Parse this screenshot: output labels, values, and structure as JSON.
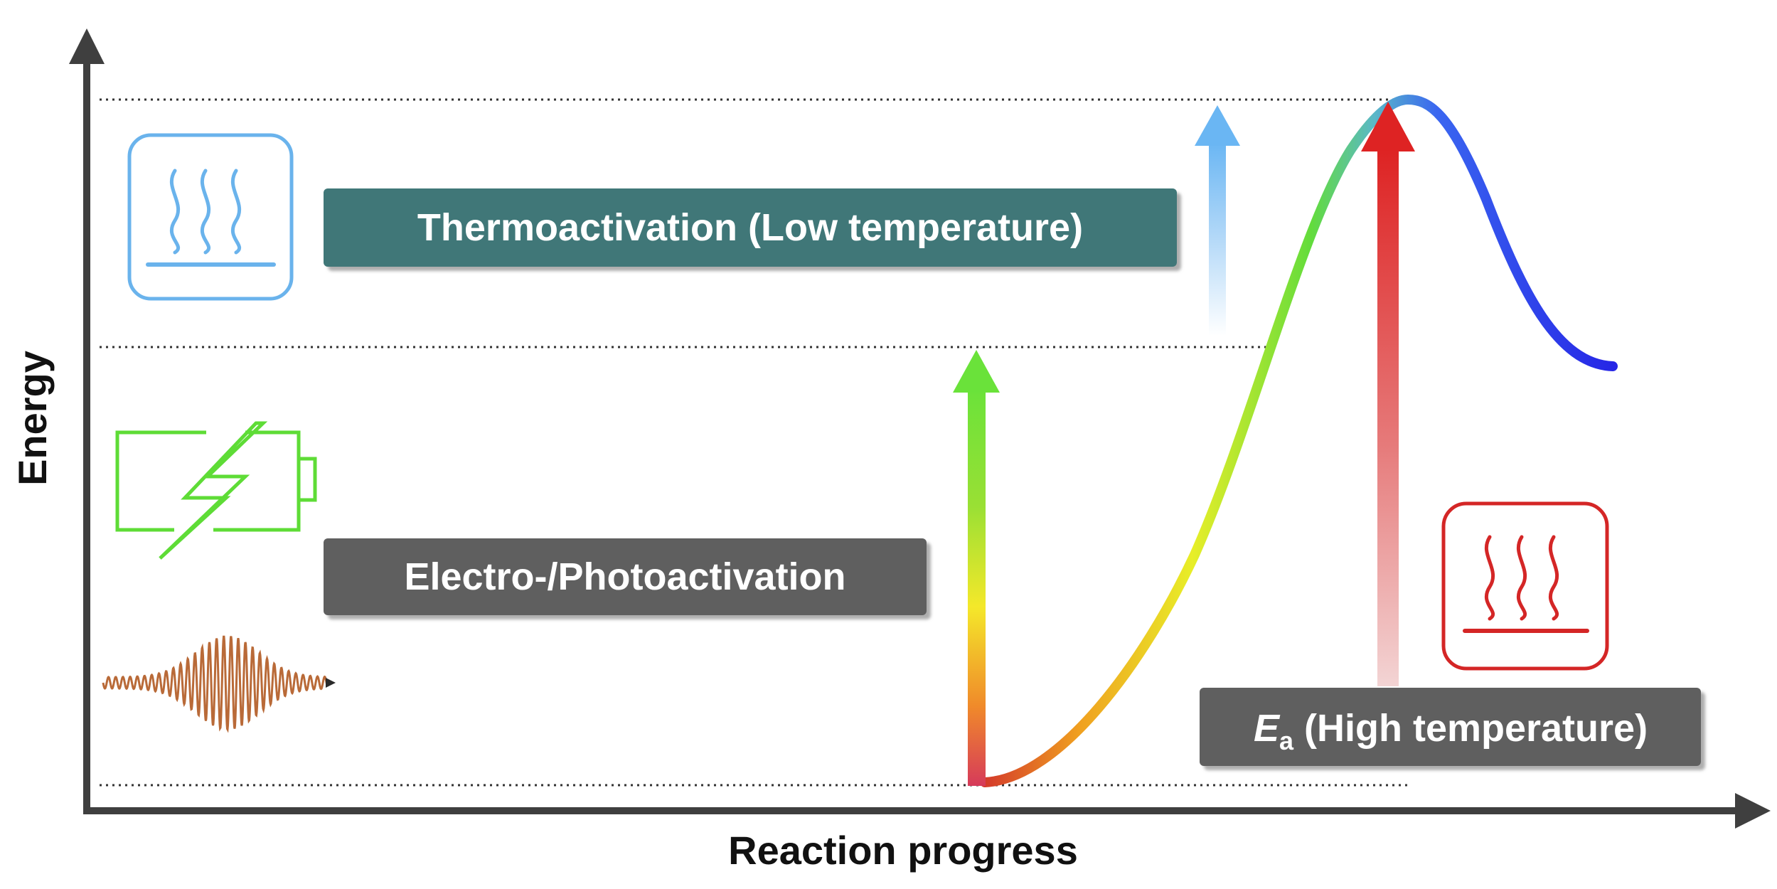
{
  "axes": {
    "x_label": "Reaction progress",
    "y_label": "Energy"
  },
  "labels": {
    "thermo": "Thermoactivation (Low temperature)",
    "electro": "Electro-/Photoactivation",
    "ea_symbol": "E",
    "ea_subscript": "a",
    "ea_rest": " (High temperature)"
  },
  "colors": {
    "axis": "#3f3f3f",
    "thermo_box": "#3f7778",
    "label_box": "#5f5f5f",
    "thermo_icon": "#6ab3ec",
    "battery_icon": "#5edc36",
    "high_temp_icon": "#d42626",
    "red_arrow": "#de2323",
    "green_arrow": "#68e23b",
    "blue_arrow": "#6ab6f3",
    "wave": "#b96a38"
  },
  "icons": {
    "top_left": "heat-plate-icon",
    "middle_left": "battery-lightning-icon",
    "bottom_left": "light-wave-icon",
    "right": "heat-plate-icon"
  }
}
